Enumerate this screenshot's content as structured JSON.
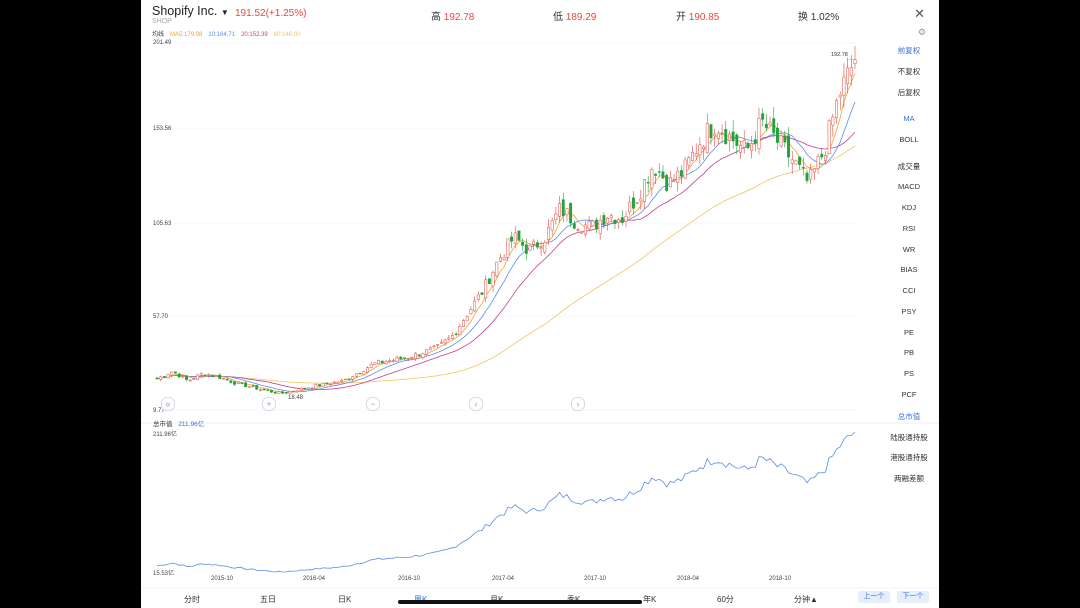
{
  "header": {
    "company": "Shopify Inc.",
    "ticker": "SHOP",
    "price_change": "191.52(+1.25%)",
    "high_label": "高",
    "high_value": "192.78",
    "low_label": "低",
    "low_value": "189.29",
    "open_label": "开",
    "open_value": "190.85",
    "turnover_label": "换",
    "turnover_value": "1.02%"
  },
  "ma_legend": {
    "title": "均线",
    "ma5": "MA5:179.98",
    "ma10": "10:164.71",
    "ma20": "20:152.39",
    "ma60": "60:146.00"
  },
  "y_axis": [
    "201.49",
    "153.56",
    "105.63",
    "57.70",
    "9.77"
  ],
  "annotations": {
    "high": "192.78",
    "low": "18.48"
  },
  "sub_panel": {
    "label": "总市值",
    "value": "211.96亿",
    "top": "211.96亿",
    "bottom": "15.53亿"
  },
  "x_axis": [
    "2015-10",
    "2016-04",
    "2016-10",
    "2017-04",
    "2017-10",
    "2018-04",
    "2018-10"
  ],
  "sidebar": [
    "前复权",
    "不复权",
    "后复权",
    "MA",
    "BOLL",
    "成交量",
    "MACD",
    "KDJ",
    "RSI",
    "WR",
    "BIAS",
    "CCI",
    "PSY",
    "PE",
    "PB",
    "PS",
    "PCF",
    "总市值",
    "陆股通持股",
    "港股通持股",
    "两融差额"
  ],
  "sidebar_active": [
    "前复权",
    "MA",
    "总市值"
  ],
  "tabs": [
    "分时",
    "五日",
    "日K",
    "周K",
    "月K",
    "季K",
    "年K",
    "60分",
    "分钟▲"
  ],
  "tabs_active": "周K",
  "buttons": {
    "prev": "上一个",
    "next": "下一个"
  },
  "colors": {
    "up": "#e5483d",
    "down": "#21a33b",
    "ma5": "#f0a23a",
    "ma10": "#5b8de6",
    "ma20": "#c2408e",
    "ma60": "#f1c45e",
    "accent": "#3a6fd8"
  },
  "chart_data": {
    "type": "candlestick",
    "title": "Shopify Inc. 周K",
    "x_range": [
      "2015-06",
      "2019-03"
    ],
    "ylim": [
      9.77,
      201.49
    ],
    "close_anchors": [
      {
        "date": "2015-06",
        "value": 26
      },
      {
        "date": "2015-07",
        "value": 30
      },
      {
        "date": "2015-08",
        "value": 25
      },
      {
        "date": "2015-09",
        "value": 29
      },
      {
        "date": "2015-10",
        "value": 27
      },
      {
        "date": "2015-11",
        "value": 24
      },
      {
        "date": "2016-01",
        "value": 20
      },
      {
        "date": "2016-02",
        "value": 18.48
      },
      {
        "date": "2016-04",
        "value": 22
      },
      {
        "date": "2016-06",
        "value": 25
      },
      {
        "date": "2016-08",
        "value": 34
      },
      {
        "date": "2016-10",
        "value": 37
      },
      {
        "date": "2016-12",
        "value": 42
      },
      {
        "date": "2017-01",
        "value": 48
      },
      {
        "date": "2017-02",
        "value": 60
      },
      {
        "date": "2017-03",
        "value": 72
      },
      {
        "date": "2017-04",
        "value": 88
      },
      {
        "date": "2017-05",
        "value": 100
      },
      {
        "date": "2017-06",
        "value": 93
      },
      {
        "date": "2017-07",
        "value": 100
      },
      {
        "date": "2017-08",
        "value": 115
      },
      {
        "date": "2017-09",
        "value": 108
      },
      {
        "date": "2017-10",
        "value": 105
      },
      {
        "date": "2017-11",
        "value": 112
      },
      {
        "date": "2017-12",
        "value": 110
      },
      {
        "date": "2018-01",
        "value": 122
      },
      {
        "date": "2018-02",
        "value": 138
      },
      {
        "date": "2018-03",
        "value": 128
      },
      {
        "date": "2018-04",
        "value": 135
      },
      {
        "date": "2018-05",
        "value": 150
      },
      {
        "date": "2018-06",
        "value": 160
      },
      {
        "date": "2018-07",
        "value": 152
      },
      {
        "date": "2018-08",
        "value": 145
      },
      {
        "date": "2018-09",
        "value": 160
      },
      {
        "date": "2018-10",
        "value": 150
      },
      {
        "date": "2018-11",
        "value": 140
      },
      {
        "date": "2018-12",
        "value": 128
      },
      {
        "date": "2019-01",
        "value": 145
      },
      {
        "date": "2019-02",
        "value": 175
      },
      {
        "date": "2019-03",
        "value": 192.78
      }
    ],
    "sub_chart": {
      "type": "line",
      "ylim": [
        "15.53亿",
        "211.96亿"
      ]
    }
  }
}
